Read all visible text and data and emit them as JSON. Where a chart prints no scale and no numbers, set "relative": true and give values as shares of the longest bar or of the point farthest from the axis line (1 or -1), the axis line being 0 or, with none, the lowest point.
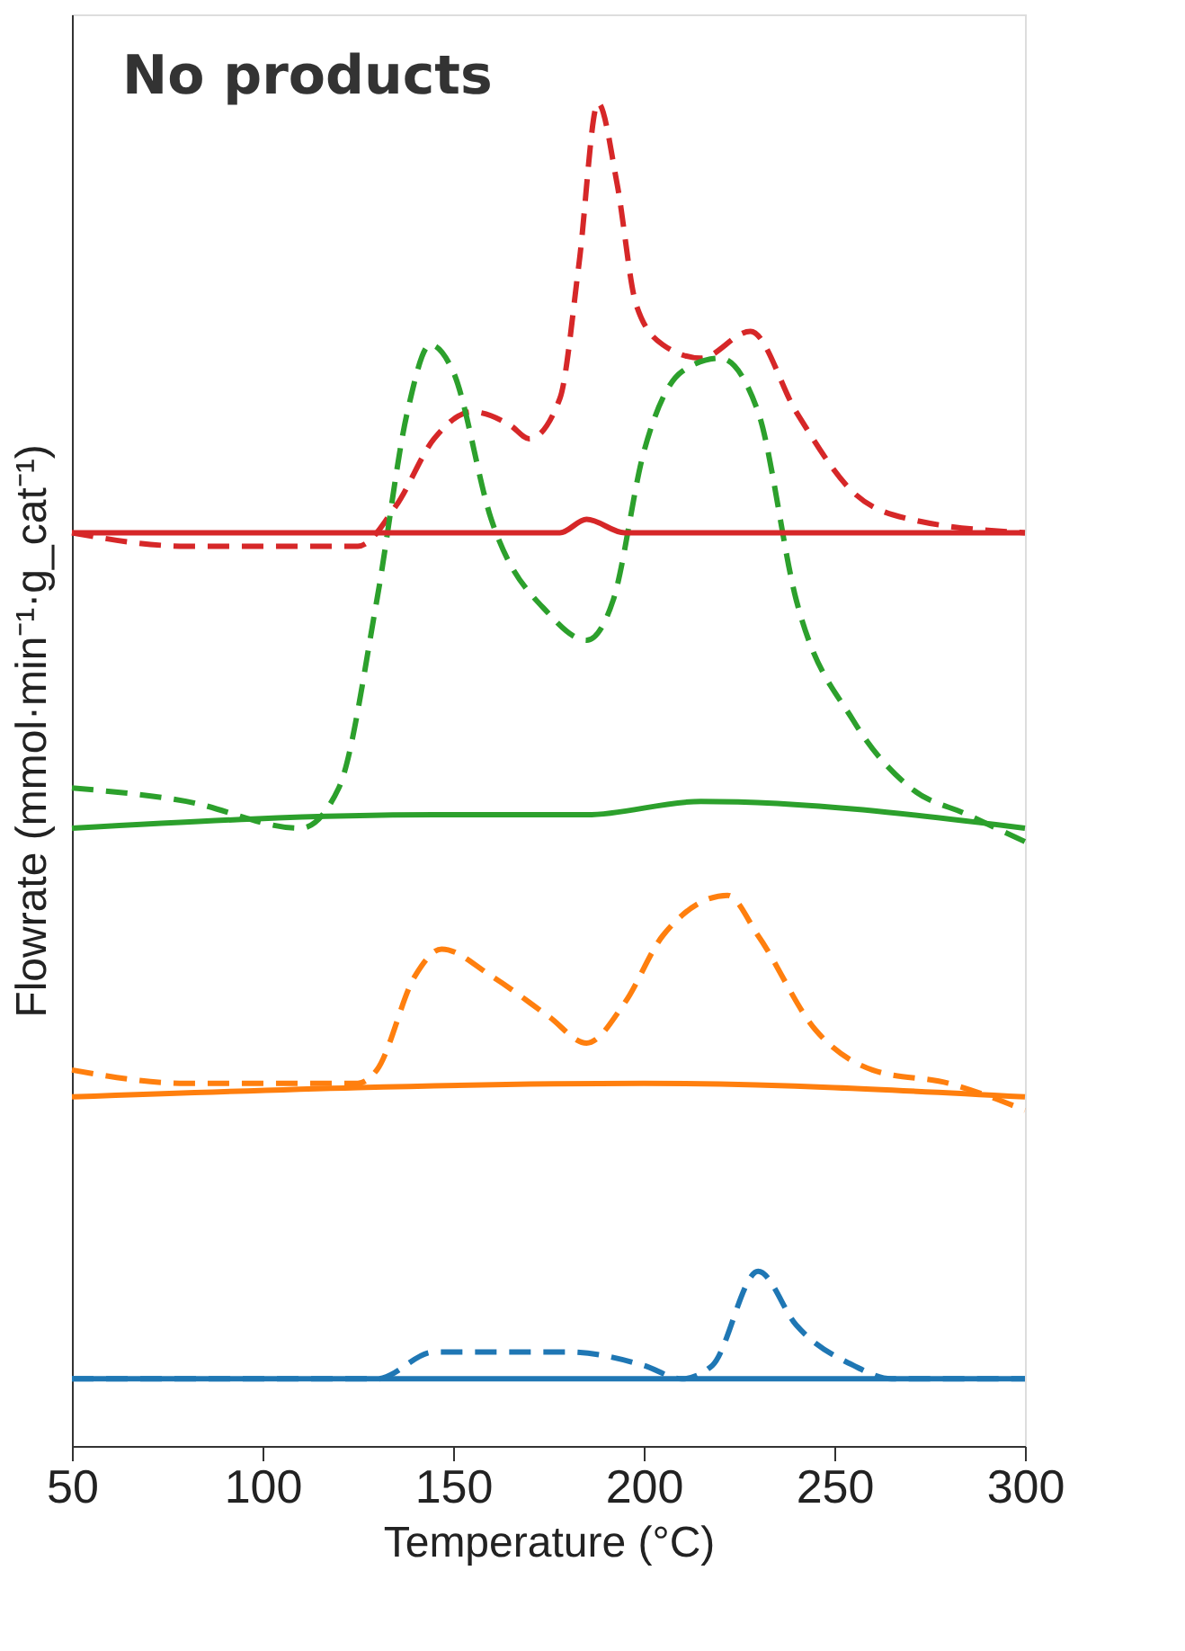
{
  "chart_data": {
    "type": "line",
    "relative": true,
    "xlabel": "Temperature (°C)",
    "ylabel": "Flowrate (mmol·min⁻¹·g_cat⁻¹)",
    "annotations": [
      "No products"
    ],
    "xlim": [
      50,
      300
    ],
    "xticks": [
      50,
      100,
      150,
      200,
      250,
      300
    ],
    "grid": false,
    "legend": false,
    "marker": "none",
    "series": [
      {
        "color": "#d62728",
        "line_style": "dashed",
        "x": [
          50,
          80,
          110,
          125,
          135,
          145,
          155,
          165,
          170,
          178,
          183,
          188,
          193,
          198,
          205,
          215,
          228,
          240,
          255,
          270,
          300
        ],
        "values": [
          0.68,
          0.67,
          0.67,
          0.67,
          0.7,
          0.75,
          0.77,
          0.76,
          0.75,
          0.78,
          0.88,
          1.0,
          0.94,
          0.85,
          0.82,
          0.81,
          0.83,
          0.77,
          0.71,
          0.69,
          0.68
        ]
      },
      {
        "color": "#d62728",
        "line_style": "solid",
        "x": [
          50,
          150,
          178,
          185,
          195,
          300
        ],
        "values": [
          0.68,
          0.68,
          0.68,
          0.69,
          0.68,
          0.68
        ]
      },
      {
        "color": "#2ca02c",
        "line_style": "dashed",
        "x": [
          50,
          80,
          110,
          120,
          130,
          138,
          144,
          150,
          160,
          175,
          185,
          192,
          200,
          210,
          220,
          230,
          240,
          255,
          270,
          285,
          300
        ],
        "values": [
          0.49,
          0.48,
          0.46,
          0.49,
          0.63,
          0.77,
          0.82,
          0.8,
          0.69,
          0.62,
          0.6,
          0.63,
          0.74,
          0.8,
          0.81,
          0.77,
          0.63,
          0.54,
          0.49,
          0.47,
          0.45
        ]
      },
      {
        "color": "#2ca02c",
        "line_style": "solid",
        "x": [
          50,
          145,
          185,
          215,
          300
        ],
        "values": [
          0.46,
          0.47,
          0.47,
          0.48,
          0.46
        ]
      },
      {
        "color": "#ff7f0e",
        "line_style": "dashed",
        "x": [
          50,
          80,
          125,
          130,
          140,
          147,
          160,
          175,
          185,
          195,
          205,
          222,
          230,
          245,
          260,
          280,
          300
        ],
        "values": [
          0.28,
          0.27,
          0.27,
          0.28,
          0.35,
          0.37,
          0.35,
          0.32,
          0.3,
          0.33,
          0.38,
          0.41,
          0.38,
          0.31,
          0.28,
          0.27,
          0.25
        ]
      },
      {
        "color": "#ff7f0e",
        "line_style": "solid",
        "x": [
          50,
          200,
          300
        ],
        "values": [
          0.26,
          0.27,
          0.26
        ]
      },
      {
        "color": "#1f77b4",
        "line_style": "dashed",
        "x": [
          50,
          130,
          145,
          155,
          180,
          200,
          210,
          218,
          230,
          240,
          255,
          265,
          300
        ],
        "values": [
          0.05,
          0.05,
          0.07,
          0.07,
          0.07,
          0.06,
          0.05,
          0.06,
          0.13,
          0.09,
          0.06,
          0.05,
          0.05
        ]
      },
      {
        "color": "#1f77b4",
        "line_style": "solid",
        "x": [
          50,
          300
        ],
        "values": [
          0.05,
          0.05
        ]
      }
    ]
  }
}
